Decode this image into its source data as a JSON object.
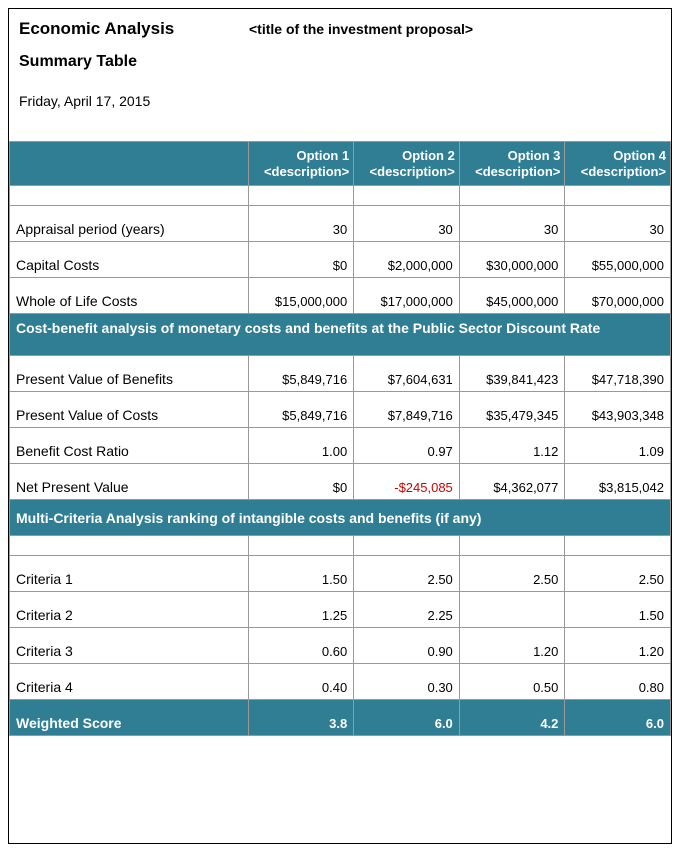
{
  "header": {
    "title": "Economic Analysis",
    "proposal_placeholder": "<title of the investment proposal>",
    "subtitle": "Summary Table",
    "date": "Friday, April 17, 2015"
  },
  "colors": {
    "section_bg": "#2f7e94",
    "section_fg": "#ffffff",
    "border": "#999999",
    "negative": "#d00000"
  },
  "options": [
    {
      "name": "Option 1",
      "desc": "<description>"
    },
    {
      "name": "Option 2",
      "desc": "<description>"
    },
    {
      "name": "Option 3",
      "desc": "<description>"
    },
    {
      "name": "Option 4",
      "desc": "<description>"
    }
  ],
  "rows_basic": [
    {
      "label": "Appraisal period (years)",
      "vals": [
        "30",
        "30",
        "30",
        "30"
      ]
    },
    {
      "label": "Capital Costs",
      "vals": [
        "$0",
        "$2,000,000",
        "$30,000,000",
        "$55,000,000"
      ]
    },
    {
      "label": "Whole of Life Costs",
      "vals": [
        "$15,000,000",
        "$17,000,000",
        "$45,000,000",
        "$70,000,000"
      ]
    }
  ],
  "section_cba": "Cost-benefit analysis of monetary costs and benefits at the Public Sector Discount Rate",
  "rows_cba": [
    {
      "label": "Present Value of Benefits",
      "vals": [
        "$5,849,716",
        "$7,604,631",
        "$39,841,423",
        "$47,718,390"
      ]
    },
    {
      "label": "Present Value of Costs",
      "vals": [
        "$5,849,716",
        "$7,849,716",
        "$35,479,345",
        "$43,903,348"
      ]
    },
    {
      "label": "Benefit Cost Ratio",
      "vals": [
        "1.00",
        "0.97",
        "1.12",
        "1.09"
      ]
    },
    {
      "label": "Net Present Value",
      "vals": [
        "$0",
        "-$245,085",
        "$4,362,077",
        "$3,815,042"
      ],
      "negativeIdx": [
        1
      ]
    }
  ],
  "section_mca": "Multi-Criteria Analysis ranking of intangible costs and benefits (if any)",
  "rows_mca": [
    {
      "label": "Criteria 1",
      "vals": [
        "1.50",
        "2.50",
        "2.50",
        "2.50"
      ]
    },
    {
      "label": "Criteria 2",
      "vals": [
        "1.25",
        "2.25",
        "",
        "1.50"
      ]
    },
    {
      "label": "Criteria 3",
      "vals": [
        "0.60",
        "0.90",
        "1.20",
        "1.20"
      ]
    },
    {
      "label": "Criteria 4",
      "vals": [
        "0.40",
        "0.30",
        "0.50",
        "0.80"
      ]
    }
  ],
  "weighted_label": "Weighted Score",
  "weighted_vals": [
    "3.8",
    "6.0",
    "4.2",
    "6.0"
  ]
}
